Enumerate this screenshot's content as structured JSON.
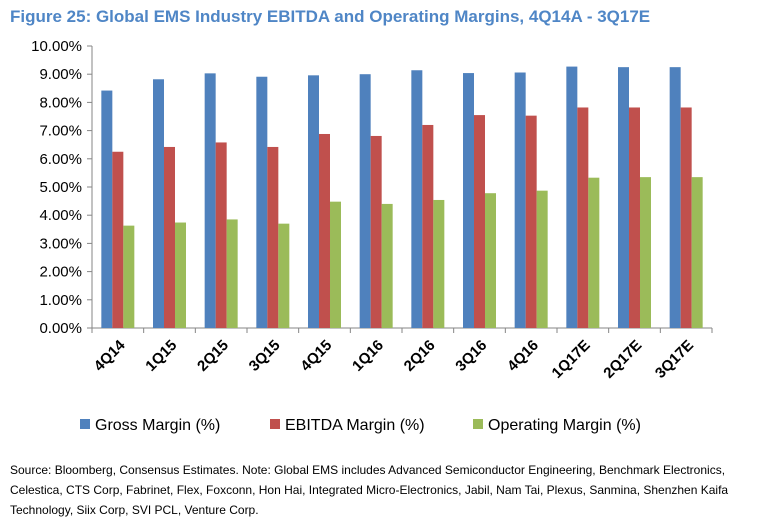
{
  "title": "Figure 25: Global EMS Industry EBITDA and Operating Margins, 4Q14A - 3Q17E",
  "source": "Source: Bloomberg, Consensus Estimates.  Note: Global EMS includes Advanced Semiconductor Engineering, Benchmark Electronics, Celestica, CTS Corp, Fabrinet, Flex, Foxconn, Hon Hai, Integrated Micro-Electronics, Jabil, Nam Tai, Plexus, Sanmina, Shenzhen Kaifa Technology, Siix Corp, SVI PCL, Venture Corp.",
  "chart_data": {
    "type": "bar",
    "title": "",
    "xlabel": "",
    "ylabel": "",
    "categories": [
      "4Q14",
      "1Q15",
      "2Q15",
      "3Q15",
      "4Q15",
      "1Q16",
      "2Q16",
      "3Q16",
      "4Q16",
      "1Q17E",
      "2Q17E",
      "3Q17E"
    ],
    "series": [
      {
        "name": "Gross Margin (%)",
        "color": "#4f81bd",
        "values": [
          8.42,
          8.82,
          9.03,
          8.91,
          8.96,
          9.0,
          9.14,
          9.04,
          9.06,
          9.27,
          9.25,
          9.25
        ]
      },
      {
        "name": "EBITDA Margin (%)",
        "color": "#c0504d",
        "values": [
          6.25,
          6.42,
          6.58,
          6.42,
          6.88,
          6.81,
          7.2,
          7.55,
          7.53,
          7.82,
          7.82,
          7.82
        ]
      },
      {
        "name": "Operating Margin (%)",
        "color": "#9bbb59",
        "values": [
          3.63,
          3.74,
          3.85,
          3.7,
          4.48,
          4.4,
          4.54,
          4.78,
          4.87,
          5.33,
          5.35,
          5.35
        ]
      }
    ],
    "ylim": [
      0,
      10
    ],
    "yticks": [
      "0.00%",
      "1.00%",
      "2.00%",
      "3.00%",
      "4.00%",
      "5.00%",
      "6.00%",
      "7.00%",
      "8.00%",
      "9.00%",
      "10.00%"
    ],
    "grid": false,
    "legend": "bottom"
  }
}
